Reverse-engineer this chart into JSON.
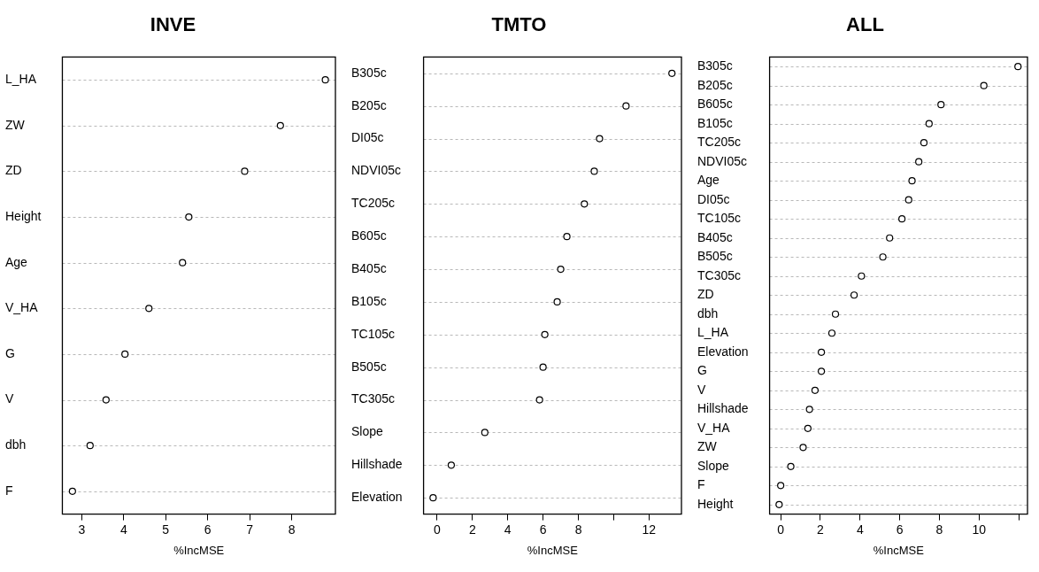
{
  "chart_data": [
    {
      "type": "scatter",
      "title": "INVE",
      "xlabel": "%IncMSE",
      "orientation": "horizontal",
      "marker": "circle",
      "grid": "y",
      "legend": false,
      "categories": [
        "L_HA",
        "ZW",
        "ZD",
        "Height",
        "Age",
        "V_HA",
        "G",
        "V",
        "dbh",
        "F"
      ],
      "series": [
        {
          "color": "#000000",
          "values": [
            8.8,
            7.73,
            6.88,
            5.55,
            5.4,
            4.6,
            4.03,
            3.58,
            3.2,
            2.78
          ]
        }
      ],
      "xlim": [
        2.54,
        9.04
      ],
      "xticks": [
        3,
        4,
        5,
        6,
        7,
        8
      ]
    },
    {
      "type": "scatter",
      "title": "TMTO",
      "xlabel": "%IncMSE",
      "orientation": "horizontal",
      "marker": "circle",
      "grid": "y",
      "legend": false,
      "categories": [
        "B305c",
        "B205c",
        "DI05c",
        "NDVI05c",
        "TC205c",
        "B605c",
        "B405c",
        "B105c",
        "TC105c",
        "B505c",
        "TC305c",
        "Slope",
        "Hillshade",
        "Elevation"
      ],
      "series": [
        {
          "color": "#000000",
          "values": [
            13.3,
            10.7,
            9.2,
            8.9,
            8.34,
            7.35,
            7.0,
            6.8,
            6.1,
            6.0,
            5.8,
            2.7,
            0.8,
            -0.23
          ]
        }
      ],
      "xlim": [
        -0.77,
        13.84
      ],
      "xticks": [
        0,
        2,
        4,
        6,
        8,
        {
          "value": 10,
          "label": null
        },
        12
      ]
    },
    {
      "type": "scatter",
      "title": "ALL",
      "xlabel": "%IncMSE",
      "orientation": "horizontal",
      "marker": "circle",
      "grid": "y",
      "legend": false,
      "categories": [
        "B305c",
        "B205c",
        "B605c",
        "B105c",
        "TC205c",
        "NDVI05c",
        "Age",
        "DI05c",
        "TC105c",
        "B405c",
        "B505c",
        "TC305c",
        "ZD",
        "dbh",
        "L_HA",
        "Elevation",
        "G",
        "V",
        "Hillshade",
        "V_HA",
        "ZW",
        "Slope",
        "F",
        "Height"
      ],
      "series": [
        {
          "color": "#000000",
          "values": [
            11.96,
            10.24,
            8.08,
            7.48,
            7.22,
            6.96,
            6.62,
            6.45,
            6.11,
            5.49,
            5.15,
            4.07,
            3.7,
            2.76,
            2.58,
            2.05,
            2.05,
            1.73,
            1.45,
            1.37,
            1.13,
            0.51,
            0,
            -0.08
          ]
        }
      ],
      "xlim": [
        -0.56,
        12.44
      ],
      "xticks": [
        0,
        2,
        4,
        6,
        8,
        10,
        {
          "value": 12,
          "label": null
        }
      ]
    }
  ]
}
